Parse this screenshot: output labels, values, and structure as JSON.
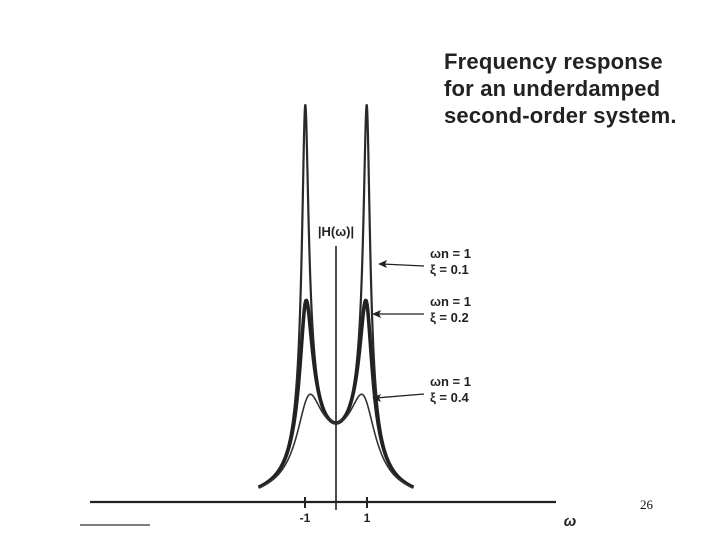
{
  "caption": {
    "line1": "Frequency response",
    "line2": "for an underdamped",
    "line3": "second-order system."
  },
  "page_number": "26",
  "chart_data": {
    "type": "line",
    "title": "",
    "ylabel": "|H(ω)|",
    "xlabel": "ω",
    "x_ticks": [
      -1,
      1
    ],
    "x_tick_labels": [
      "-1",
      "1"
    ],
    "xlim": [
      -3.3,
      3.3
    ],
    "ylim": [
      0,
      5.2
    ],
    "grid": false,
    "legend": "annotations right of curves",
    "series": [
      {
        "wn": 1,
        "xi": 0.1,
        "label_wn": "ωn = 1",
        "label_xi": "ξ = 0.1",
        "stroke": "#2a2a2a"
      },
      {
        "wn": 1,
        "xi": 0.2,
        "label_wn": "ωn = 1",
        "label_xi": "ξ = 0.2",
        "stroke": "#222222"
      },
      {
        "wn": 1,
        "xi": 0.4,
        "label_wn": "ωn = 1",
        "label_xi": "ξ = 0.4",
        "stroke": "#333333"
      }
    ]
  },
  "colors": {
    "ink": "#222222",
    "background": "#ffffff"
  }
}
